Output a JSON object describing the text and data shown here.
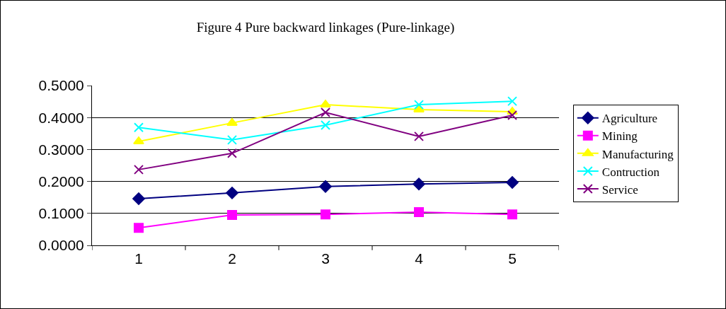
{
  "chart_data": {
    "type": "line",
    "title": "Figure 4 Pure backward linkages (Pure-linkage)",
    "categories": [
      "1",
      "2",
      "3",
      "4",
      "5"
    ],
    "ylim": [
      0,
      0.5
    ],
    "yticks": [
      {
        "value": 0,
        "label": "0.0000"
      },
      {
        "value": 0.1,
        "label": "0.1000"
      },
      {
        "value": 0.2,
        "label": "0.2000"
      },
      {
        "value": 0.3,
        "label": "0.3000"
      },
      {
        "value": 0.4,
        "label": "0.4000"
      },
      {
        "value": 0.5,
        "label": "0.5000"
      }
    ],
    "grid": "y",
    "legend": "right",
    "line_style": "solid",
    "series": [
      {
        "name": "Agriculture",
        "color": "#000080",
        "marker": "diamond",
        "values": [
          0.146,
          0.164,
          0.184,
          0.192,
          0.197
        ]
      },
      {
        "name": "Mining",
        "color": "#ff00ff",
        "marker": "square",
        "values": [
          0.055,
          0.095,
          0.097,
          0.104,
          0.097
        ]
      },
      {
        "name": "Manufacturing",
        "color": "#ffff00",
        "marker": "triangle",
        "values": [
          0.325,
          0.383,
          0.44,
          0.425,
          0.418
        ]
      },
      {
        "name": "Contruction",
        "color": "#00ffff",
        "marker": "cross",
        "values": [
          0.369,
          0.33,
          0.376,
          0.44,
          0.451
        ]
      },
      {
        "name": "Service",
        "color": "#800080",
        "marker": "cross",
        "values": [
          0.237,
          0.288,
          0.416,
          0.341,
          0.407
        ]
      }
    ]
  }
}
